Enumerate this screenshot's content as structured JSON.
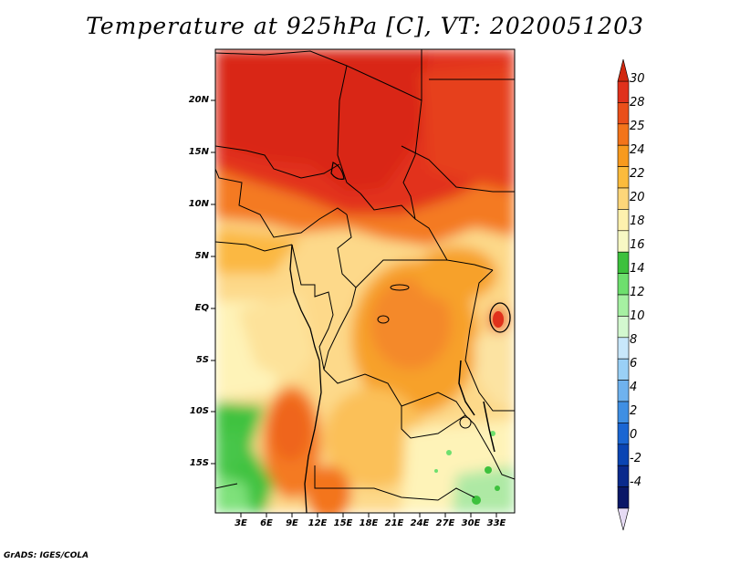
{
  "title": "Temperature at 925hPa [C], VT: 2020051203",
  "credit": "GrADS: IGES/COLA",
  "map": {
    "lat_labels": [
      "20N",
      "15N",
      "10N",
      "5N",
      "EQ",
      "5S",
      "10S",
      "15S"
    ],
    "lon_labels": [
      "3E",
      "6E",
      "9E",
      "12E",
      "15E",
      "18E",
      "21E",
      "24E",
      "27E",
      "30E",
      "33E"
    ]
  },
  "colorbar": {
    "labels": [
      "30",
      "28",
      "25",
      "24",
      "22",
      "20",
      "18",
      "16",
      "14",
      "12",
      "10",
      "8",
      "6",
      "4",
      "2",
      "0",
      "-2",
      "-4"
    ],
    "colors": [
      "#e0311c",
      "#ea4f1a",
      "#f3741a",
      "#f79a1e",
      "#fbbb3c",
      "#fdd67a",
      "#fef1ae",
      "#f7f8c4",
      "#3dc13d",
      "#6edf6e",
      "#a6f0a2",
      "#d3f8cf",
      "#c8e7fb",
      "#9ad0f6",
      "#6fb2ee",
      "#3f8fe3",
      "#1a66d3",
      "#0a45b3",
      "#0a2a8c",
      "#0a1767"
    ],
    "top_color": "#d1280f",
    "bottom_color": "#e6dbf4"
  }
}
